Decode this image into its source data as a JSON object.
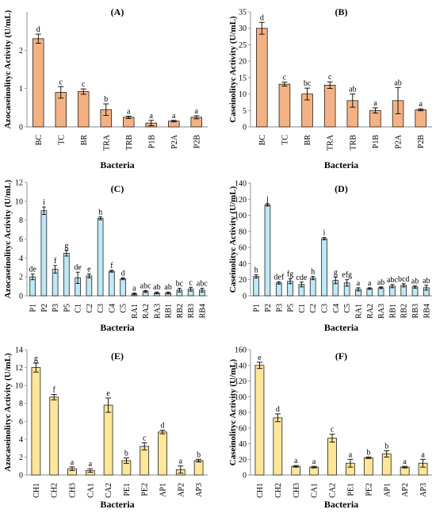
{
  "chart_data": [
    {
      "type": "bar",
      "title": "(A)",
      "xlabel": "Bacteria",
      "ylabel": "Azocaseinolityc Activity (U/mL)",
      "ylim": [
        0,
        3
      ],
      "yticks": [
        0,
        1,
        2
      ],
      "color": "#f4b183",
      "categories": [
        "BC",
        "TC",
        "BR",
        "TRA",
        "TRB",
        "P1B",
        "P2A",
        "P2B"
      ],
      "values": [
        2.3,
        0.9,
        0.92,
        0.45,
        0.25,
        0.1,
        0.15,
        0.25
      ],
      "errors": [
        0.12,
        0.15,
        0.07,
        0.15,
        0.03,
        0.07,
        0.02,
        0.04
      ],
      "letters": [
        "d",
        "c",
        "c",
        "b",
        "a",
        "a",
        "a",
        "a"
      ]
    },
    {
      "type": "bar",
      "title": "(B)",
      "xlabel": "Bacteria",
      "ylabel": "Caseinolityc Activity (U/mL)",
      "ylim": [
        0,
        35
      ],
      "yticks": [
        0,
        5,
        10,
        15,
        20,
        25,
        30,
        35
      ],
      "color": "#f4b183",
      "categories": [
        "BC",
        "TC",
        "BR",
        "TRA",
        "TRB",
        "P1B",
        "P2A",
        "P2B"
      ],
      "values": [
        30,
        13,
        10,
        12.7,
        8,
        5,
        8,
        5.2
      ],
      "errors": [
        1.8,
        0.6,
        1.8,
        1.0,
        2.0,
        0.8,
        4.0,
        0.3
      ],
      "letters": [
        "d",
        "c",
        "bc",
        "c",
        "ab",
        "a",
        "ab",
        "a"
      ]
    },
    {
      "type": "bar",
      "title": "(C)",
      "xlabel": "Bacteria",
      "ylabel": "Azocaseinolityc Activity (U/mL)",
      "ylim": [
        0,
        12
      ],
      "yticks": [
        0,
        2,
        4,
        6,
        8,
        10,
        12
      ],
      "color": "#bfe9f7",
      "categories": [
        "P1",
        "P2",
        "P3",
        "P5",
        "C1",
        "C2",
        "C3",
        "C4",
        "C5",
        "RA1",
        "RA2",
        "RA3",
        "RB1",
        "RB2",
        "RB3",
        "RB4"
      ],
      "values": [
        2.0,
        9.0,
        2.8,
        4.5,
        1.9,
        2.1,
        8.2,
        2.6,
        1.8,
        0.2,
        0.45,
        0.3,
        0.3,
        0.6,
        0.7,
        0.6
      ],
      "errors": [
        0.3,
        0.4,
        0.4,
        0.3,
        0.6,
        0.2,
        0.15,
        0.1,
        0.1,
        0.1,
        0.1,
        0.1,
        0.1,
        0.2,
        0.2,
        0.2
      ],
      "letters": [
        "de",
        "i",
        "f",
        "g",
        "de",
        "e",
        "h",
        "f",
        "d",
        "a",
        "abc",
        "ab",
        "ab",
        "bc",
        "c",
        "abc"
      ]
    },
    {
      "type": "bar",
      "title": "(D)",
      "xlabel": "Bacteria",
      "ylabel": "Caseinolityc Activity (U/mL)",
      "ylim": [
        0,
        140
      ],
      "yticks": [
        0,
        20,
        40,
        60,
        80,
        100,
        120,
        140
      ],
      "color": "#bfe9f7",
      "categories": [
        "P1",
        "P2",
        "P3",
        "P5",
        "C1",
        "C2",
        "C3",
        "C4",
        "C5",
        "RA1",
        "RA2",
        "RA3",
        "RB1",
        "RB2",
        "RB3",
        "RB4"
      ],
      "values": [
        24,
        113,
        16,
        18,
        14,
        22,
        71,
        19,
        16,
        8,
        9,
        10,
        12,
        13,
        11,
        10
      ],
      "errors": [
        2,
        1.5,
        1.5,
        3,
        3,
        2,
        1.5,
        4,
        4,
        2,
        1,
        1,
        2,
        2,
        1.5,
        3
      ],
      "letters": [
        "h",
        "j",
        "def",
        "fg",
        "cde",
        "h",
        "i",
        "g",
        "efg",
        "a",
        "a",
        "ab",
        "abc",
        "bcd",
        "ab",
        "ab"
      ]
    },
    {
      "type": "bar",
      "title": "(E)",
      "xlabel": "Bacteria",
      "ylabel": "Azocaseinolityc Activity (U/mL)",
      "ylim": [
        0,
        14
      ],
      "yticks": [
        0,
        2,
        4,
        6,
        8,
        10,
        12,
        14
      ],
      "color": "#ffe699",
      "categories": [
        "CH1",
        "CH2",
        "CH3",
        "CA1",
        "CA2",
        "PE1",
        "PE2",
        "AP1",
        "AP2",
        "AP3"
      ],
      "values": [
        12.0,
        8.7,
        0.7,
        0.5,
        7.8,
        1.6,
        3.2,
        4.8,
        0.6,
        1.6
      ],
      "errors": [
        0.5,
        0.3,
        0.2,
        0.2,
        0.8,
        0.3,
        0.4,
        0.2,
        0.4,
        0.15
      ],
      "letters": [
        "g",
        "f",
        "a",
        "a",
        "e",
        "b",
        "c",
        "d",
        "a",
        "b"
      ]
    },
    {
      "type": "bar",
      "title": "(F)",
      "xlabel": "Bacteria",
      "ylabel": "Caseinolityc Activity (U/mL)",
      "ylim": [
        0,
        160
      ],
      "yticks": [
        0,
        20,
        40,
        60,
        80,
        100,
        120,
        140,
        160
      ],
      "color": "#ffe699",
      "categories": [
        "CH1",
        "CH2",
        "CH3",
        "CA1",
        "CA2",
        "PE1",
        "PE2",
        "AP1",
        "AP2",
        "AP3"
      ],
      "values": [
        140,
        73,
        11,
        10,
        47,
        15,
        22,
        27,
        10,
        15
      ],
      "errors": [
        4,
        5,
        1,
        1,
        5,
        5,
        1,
        4,
        1,
        5
      ],
      "letters": [
        "e",
        "d",
        "a",
        "a",
        "c",
        "a",
        "b",
        "b",
        "a",
        "a"
      ]
    }
  ]
}
